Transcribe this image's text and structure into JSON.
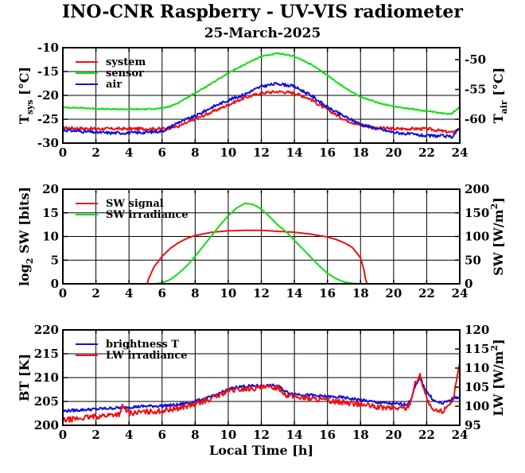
{
  "title": "INO-CNR Raspberry - UV-VIS radiometer",
  "date": "25-March-2025",
  "colors": {
    "red": "#ee1111",
    "green": "#11dd11",
    "blue": "#1111dd"
  },
  "chart_data": [
    {
      "type": "line",
      "x_ticks": [
        "0",
        "2",
        "4",
        "6",
        "8",
        "10",
        "12",
        "14",
        "16",
        "18",
        "20",
        "22",
        "24"
      ],
      "xlim": [
        0,
        24
      ],
      "ylabel_left": "T",
      "ylabel_left_sub": "sys",
      "ylabel_left_unit": " [°C]",
      "ylim_left": [
        -30,
        -10
      ],
      "yticks_left": [
        "-30",
        "-25",
        "-20",
        "-15",
        "-10"
      ],
      "ylabel_right": "T",
      "ylabel_right_sub": "air",
      "ylabel_right_unit": " [°C]",
      "ylim_right": [
        -64,
        -48
      ],
      "yticks_right": [
        "-60",
        "-55",
        "-50"
      ],
      "legend": "top-left",
      "grid": true,
      "series": [
        {
          "name": "system",
          "color": "#ee1111",
          "axis": "left",
          "noise": 0.3,
          "x": [
            0,
            2,
            4,
            5,
            6,
            6.5,
            7,
            8,
            9,
            10,
            10.5,
            11,
            12,
            13,
            14,
            15,
            15.5,
            16,
            17,
            18,
            19,
            20,
            21,
            22,
            23,
            23.5,
            24
          ],
          "y": [
            -26.8,
            -27,
            -27,
            -27,
            -27,
            -26.8,
            -26.5,
            -25,
            -23.5,
            -22,
            -21.2,
            -20.5,
            -19.5,
            -19.2,
            -19.5,
            -20.8,
            -22,
            -23,
            -25,
            -26.3,
            -26.8,
            -27,
            -27,
            -27,
            -27.5,
            -27.8,
            -27
          ]
        },
        {
          "name": "sensor",
          "color": "#11dd11",
          "axis": "left",
          "noise": 0.12,
          "x": [
            0,
            1,
            2,
            3,
            4,
            5,
            6,
            6.5,
            7,
            8,
            9,
            10,
            11,
            12,
            13,
            14,
            15,
            16,
            17,
            18,
            19,
            20,
            21,
            22,
            23,
            23.5,
            24
          ],
          "y": [
            -22.5,
            -22.6,
            -22.8,
            -22.9,
            -22.9,
            -22.9,
            -22.7,
            -22.3,
            -21.5,
            -19.5,
            -17.5,
            -15.3,
            -13.5,
            -11.8,
            -11.2,
            -11.8,
            -13.5,
            -15.8,
            -18.3,
            -20.3,
            -21.5,
            -22.3,
            -22.8,
            -23.3,
            -23.8,
            -23.8,
            -22.4
          ]
        },
        {
          "name": "air",
          "color": "#1111dd",
          "axis": "right",
          "noise": 0.3,
          "x": [
            0,
            1,
            2,
            3,
            4,
            5,
            6,
            6.5,
            7,
            8,
            9,
            10,
            11,
            12,
            13,
            14,
            15,
            16,
            17,
            18,
            19,
            20,
            21,
            22,
            23,
            23.5,
            24
          ],
          "y": [
            -61.8,
            -62,
            -62.2,
            -62.3,
            -62.3,
            -62.2,
            -62,
            -61.3,
            -60.5,
            -59.5,
            -58,
            -56.8,
            -55.8,
            -54.5,
            -54,
            -54.5,
            -56,
            -58,
            -59.5,
            -60.8,
            -61.6,
            -62.2,
            -62.5,
            -62.8,
            -62.8,
            -63,
            -61.5
          ]
        }
      ]
    },
    {
      "type": "line",
      "x_ticks": [
        "0",
        "2",
        "4",
        "6",
        "8",
        "10",
        "12",
        "14",
        "16",
        "18",
        "20",
        "22",
        "24"
      ],
      "xlim": [
        0,
        24
      ],
      "ylabel_left": "log",
      "ylabel_left_sub": "2",
      "ylabel_left_unit": " SW [bits]",
      "ylim_left": [
        0,
        20
      ],
      "yticks_left": [
        "0",
        "5",
        "10",
        "15",
        "20"
      ],
      "ylabel_right": "SW [W/m",
      "ylabel_right_sup": "2",
      "ylabel_right_unit": "]",
      "ylim_right": [
        0,
        200
      ],
      "yticks_right": [
        "0",
        "50",
        "100",
        "150",
        "200"
      ],
      "legend": "top-left",
      "grid": true,
      "series": [
        {
          "name": "SW signal",
          "color": "#ee1111",
          "axis": "left",
          "noise": 0,
          "x": [
            0,
            5.1,
            5.15,
            5.5,
            6,
            6.5,
            7,
            7.5,
            8,
            9,
            10,
            11,
            12,
            13,
            14,
            15,
            16,
            16.5,
            17,
            17.5,
            18,
            18.2,
            18.3,
            18.4,
            24
          ],
          "y": [
            0,
            0,
            0.8,
            3.5,
            5.8,
            7.5,
            8.7,
            9.6,
            10.2,
            10.9,
            11.2,
            11.3,
            11.3,
            11.1,
            10.9,
            10.5,
            9.9,
            9.4,
            8.7,
            7.7,
            5.5,
            3,
            1,
            0,
            0
          ]
        },
        {
          "name": "SW irradiance",
          "color": "#11dd11",
          "axis": "right",
          "noise": 0,
          "x": [
            0,
            5.6,
            6,
            6.5,
            7,
            7.5,
            8,
            8.5,
            9,
            9.5,
            10,
            10.5,
            11,
            11.5,
            12,
            12.5,
            13,
            13.5,
            14,
            14.5,
            15,
            15.5,
            16,
            16.5,
            17,
            17.5,
            18,
            24
          ],
          "y": [
            0,
            0,
            2,
            9,
            22,
            38,
            58,
            80,
            102,
            124,
            144,
            160,
            170,
            168,
            158,
            142,
            124,
            110,
            92,
            74,
            56,
            38,
            22,
            11,
            4,
            1,
            0,
            0
          ]
        }
      ]
    },
    {
      "type": "line",
      "x_ticks": [
        "0",
        "2",
        "4",
        "6",
        "8",
        "10",
        "12",
        "14",
        "16",
        "18",
        "20",
        "22",
        "24"
      ],
      "xlim": [
        0,
        24
      ],
      "xlabel": "Local Time [h]",
      "ylabel_left": "BT [K]",
      "ylim_left": [
        200,
        220
      ],
      "yticks_left": [
        "200",
        "205",
        "210",
        "215",
        "220"
      ],
      "ylabel_right": "LW [W/m",
      "ylabel_right_sup": "2",
      "ylabel_right_unit": "]",
      "ylim_right": [
        95,
        120
      ],
      "yticks_right": [
        "95",
        "100",
        "105",
        "110",
        "115",
        "120"
      ],
      "legend": "top-left",
      "grid": true,
      "series": [
        {
          "name": "brightness T",
          "color": "#1111dd",
          "axis": "left",
          "noise": 0.3,
          "x": [
            0,
            1,
            2,
            3,
            4,
            5,
            6,
            7,
            8,
            9,
            10,
            10.5,
            11,
            12,
            13,
            13.5,
            14,
            15,
            16,
            17,
            18,
            19,
            20,
            20.8,
            21,
            21.3,
            21.6,
            22,
            22.5,
            23,
            23.5,
            24
          ],
          "y": [
            203,
            203.2,
            203.4,
            203.6,
            203.8,
            204,
            204.1,
            204.3,
            205,
            206,
            207.5,
            208,
            208.2,
            208.3,
            208.3,
            207,
            206.6,
            206.3,
            206,
            205.8,
            205.3,
            204.8,
            204.5,
            204.4,
            205,
            208,
            210,
            207,
            205,
            204.6,
            205.5,
            206
          ]
        },
        {
          "name": "LW irradiance",
          "color": "#ee1111",
          "axis": "right",
          "noise": 0.55,
          "x": [
            0,
            1,
            2,
            3,
            3.5,
            3.6,
            4,
            5,
            6,
            7,
            8,
            9,
            10,
            11,
            12,
            13,
            13.5,
            14,
            15,
            16,
            17,
            18,
            19,
            20,
            20.8,
            21,
            21.3,
            21.6,
            22,
            22.3,
            22.6,
            23,
            23.3,
            23.6,
            24
          ],
          "y": [
            96.3,
            96.8,
            97.3,
            97.8,
            98,
            100,
            98.2,
            98.5,
            98.8,
            99.5,
            100.5,
            102,
            104,
            104.5,
            104.8,
            105,
            103,
            102.5,
            102,
            101.5,
            101,
            100.5,
            99.7,
            99.5,
            99.5,
            101,
            106,
            108,
            102,
            99,
            98.7,
            98.7,
            100.5,
            101.5,
            111
          ]
        }
      ]
    }
  ]
}
